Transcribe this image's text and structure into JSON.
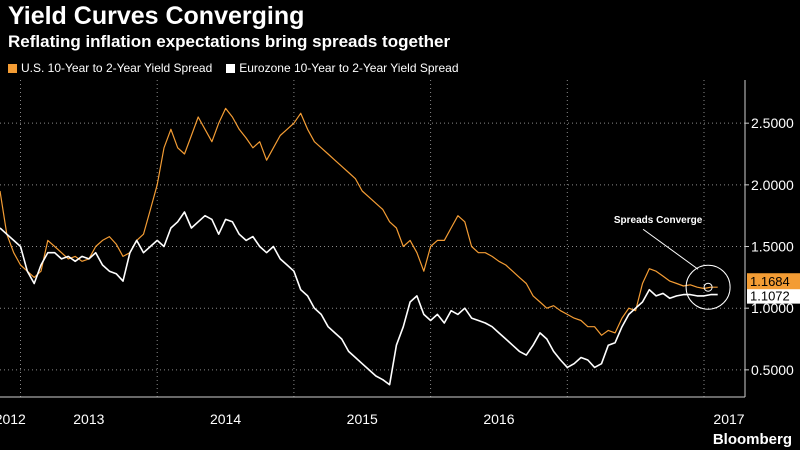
{
  "title": "Yield Curves Converging",
  "subtitle": "Reflating inflation expectations bring spreads together",
  "brand": "Bloomberg",
  "colors": {
    "us": "#f39c34",
    "ez": "#ffffff",
    "grid": "#8a8a8a",
    "axis": "#cfcfcf",
    "bg": "#000000"
  },
  "chart_data": {
    "type": "line",
    "title": "Yield Curves Converging",
    "subtitle": "Reflating inflation expectations bring spreads together",
    "xlabel": "",
    "ylabel": "",
    "xlim": [
      2011.85,
      2017.3
    ],
    "ylim": [
      0.28,
      2.85
    ],
    "yticks": [
      0.5,
      1.0,
      1.5,
      2.0,
      2.5
    ],
    "ytick_labels": [
      "0.5000",
      "1.0000",
      "1.5000",
      "2.0000",
      "2.5000"
    ],
    "xticks": [
      2012,
      2013,
      2014,
      2015,
      2016,
      2017
    ],
    "xtick_labels": [
      "2012",
      "2013",
      "2014",
      "2015",
      "2016",
      "2017"
    ],
    "grid": true,
    "legend": "top-left",
    "series": [
      {
        "name": "U.S. 10-Year to 2-Year Yield Spread",
        "last_value": "1.1684",
        "x": [
          2011.85,
          2011.9,
          2011.95,
          2012.0,
          2012.05,
          2012.1,
          2012.15,
          2012.2,
          2012.25,
          2012.3,
          2012.35,
          2012.4,
          2012.45,
          2012.5,
          2012.55,
          2012.6,
          2012.65,
          2012.7,
          2012.75,
          2012.8,
          2012.85,
          2012.9,
          2012.95,
          2013.0,
          2013.05,
          2013.1,
          2013.15,
          2013.2,
          2013.25,
          2013.3,
          2013.35,
          2013.4,
          2013.45,
          2013.5,
          2013.55,
          2013.6,
          2013.65,
          2013.7,
          2013.75,
          2013.8,
          2013.85,
          2013.9,
          2013.95,
          2014.0,
          2014.05,
          2014.1,
          2014.15,
          2014.2,
          2014.25,
          2014.3,
          2014.35,
          2014.4,
          2014.45,
          2014.5,
          2014.55,
          2014.6,
          2014.65,
          2014.7,
          2014.75,
          2014.8,
          2014.85,
          2014.9,
          2014.95,
          2015.0,
          2015.05,
          2015.1,
          2015.15,
          2015.2,
          2015.25,
          2015.3,
          2015.35,
          2015.4,
          2015.45,
          2015.5,
          2015.55,
          2015.6,
          2015.65,
          2015.7,
          2015.75,
          2015.8,
          2015.85,
          2015.9,
          2015.95,
          2016.0,
          2016.05,
          2016.1,
          2016.15,
          2016.2,
          2016.25,
          2016.3,
          2016.35,
          2016.4,
          2016.45,
          2016.5,
          2016.55,
          2016.6,
          2016.65,
          2016.7,
          2016.75,
          2016.8,
          2016.85,
          2016.9,
          2016.95,
          2017.0,
          2017.05,
          2017.1
        ],
        "values": [
          1.95,
          1.6,
          1.45,
          1.35,
          1.3,
          1.25,
          1.3,
          1.55,
          1.5,
          1.45,
          1.4,
          1.42,
          1.38,
          1.4,
          1.5,
          1.55,
          1.58,
          1.52,
          1.42,
          1.45,
          1.55,
          1.6,
          1.8,
          2.0,
          2.3,
          2.45,
          2.3,
          2.25,
          2.4,
          2.55,
          2.45,
          2.35,
          2.5,
          2.62,
          2.55,
          2.45,
          2.38,
          2.3,
          2.35,
          2.2,
          2.3,
          2.4,
          2.45,
          2.5,
          2.58,
          2.45,
          2.35,
          2.3,
          2.25,
          2.2,
          2.15,
          2.1,
          2.05,
          1.95,
          1.9,
          1.85,
          1.8,
          1.7,
          1.65,
          1.5,
          1.55,
          1.45,
          1.3,
          1.5,
          1.55,
          1.55,
          1.65,
          1.75,
          1.7,
          1.5,
          1.45,
          1.45,
          1.42,
          1.38,
          1.35,
          1.3,
          1.25,
          1.2,
          1.1,
          1.05,
          1.0,
          1.02,
          0.98,
          0.95,
          0.92,
          0.9,
          0.85,
          0.85,
          0.78,
          0.82,
          0.8,
          0.92,
          1.0,
          0.98,
          1.2,
          1.32,
          1.3,
          1.26,
          1.22,
          1.2,
          1.18,
          1.19,
          1.17,
          1.16,
          1.17,
          1.17
        ]
      },
      {
        "name": "Eurozone 10-Year to 2-Year Yield Spread",
        "last_value": "1.1072",
        "x": [
          2011.85,
          2011.9,
          2011.95,
          2012.0,
          2012.05,
          2012.1,
          2012.15,
          2012.2,
          2012.25,
          2012.3,
          2012.35,
          2012.4,
          2012.45,
          2012.5,
          2012.55,
          2012.6,
          2012.65,
          2012.7,
          2012.75,
          2012.8,
          2012.85,
          2012.9,
          2012.95,
          2013.0,
          2013.05,
          2013.1,
          2013.15,
          2013.2,
          2013.25,
          2013.3,
          2013.35,
          2013.4,
          2013.45,
          2013.5,
          2013.55,
          2013.6,
          2013.65,
          2013.7,
          2013.75,
          2013.8,
          2013.85,
          2013.9,
          2013.95,
          2014.0,
          2014.05,
          2014.1,
          2014.15,
          2014.2,
          2014.25,
          2014.3,
          2014.35,
          2014.4,
          2014.45,
          2014.5,
          2014.55,
          2014.6,
          2014.65,
          2014.7,
          2014.75,
          2014.8,
          2014.85,
          2014.9,
          2014.95,
          2015.0,
          2015.05,
          2015.1,
          2015.15,
          2015.2,
          2015.25,
          2015.3,
          2015.35,
          2015.4,
          2015.45,
          2015.5,
          2015.55,
          2015.6,
          2015.65,
          2015.7,
          2015.75,
          2015.8,
          2015.85,
          2015.9,
          2015.95,
          2016.0,
          2016.05,
          2016.1,
          2016.15,
          2016.2,
          2016.25,
          2016.3,
          2016.35,
          2016.4,
          2016.45,
          2016.5,
          2016.55,
          2016.6,
          2016.65,
          2016.7,
          2016.75,
          2016.8,
          2016.85,
          2016.9,
          2016.95,
          2017.0,
          2017.05,
          2017.1
        ],
        "values": [
          1.65,
          1.6,
          1.55,
          1.5,
          1.3,
          1.2,
          1.35,
          1.45,
          1.45,
          1.4,
          1.42,
          1.38,
          1.42,
          1.4,
          1.45,
          1.35,
          1.3,
          1.28,
          1.22,
          1.45,
          1.55,
          1.45,
          1.5,
          1.55,
          1.5,
          1.65,
          1.7,
          1.78,
          1.65,
          1.7,
          1.75,
          1.72,
          1.6,
          1.72,
          1.7,
          1.6,
          1.55,
          1.58,
          1.5,
          1.45,
          1.5,
          1.4,
          1.35,
          1.3,
          1.15,
          1.1,
          1.0,
          0.95,
          0.85,
          0.8,
          0.75,
          0.65,
          0.6,
          0.55,
          0.5,
          0.45,
          0.42,
          0.38,
          0.7,
          0.85,
          1.05,
          1.1,
          0.95,
          0.9,
          0.95,
          0.88,
          0.98,
          0.95,
          1.0,
          0.92,
          0.9,
          0.88,
          0.85,
          0.8,
          0.75,
          0.7,
          0.65,
          0.62,
          0.7,
          0.8,
          0.75,
          0.65,
          0.58,
          0.52,
          0.55,
          0.6,
          0.58,
          0.52,
          0.55,
          0.7,
          0.72,
          0.85,
          0.95,
          1.0,
          1.05,
          1.15,
          1.1,
          1.12,
          1.08,
          1.1,
          1.11,
          1.11,
          1.1,
          1.1,
          1.11,
          1.11
        ]
      }
    ],
    "annotations": [
      {
        "text": "Spreads Converge",
        "x": 2017.03,
        "y": 1.17
      }
    ]
  }
}
